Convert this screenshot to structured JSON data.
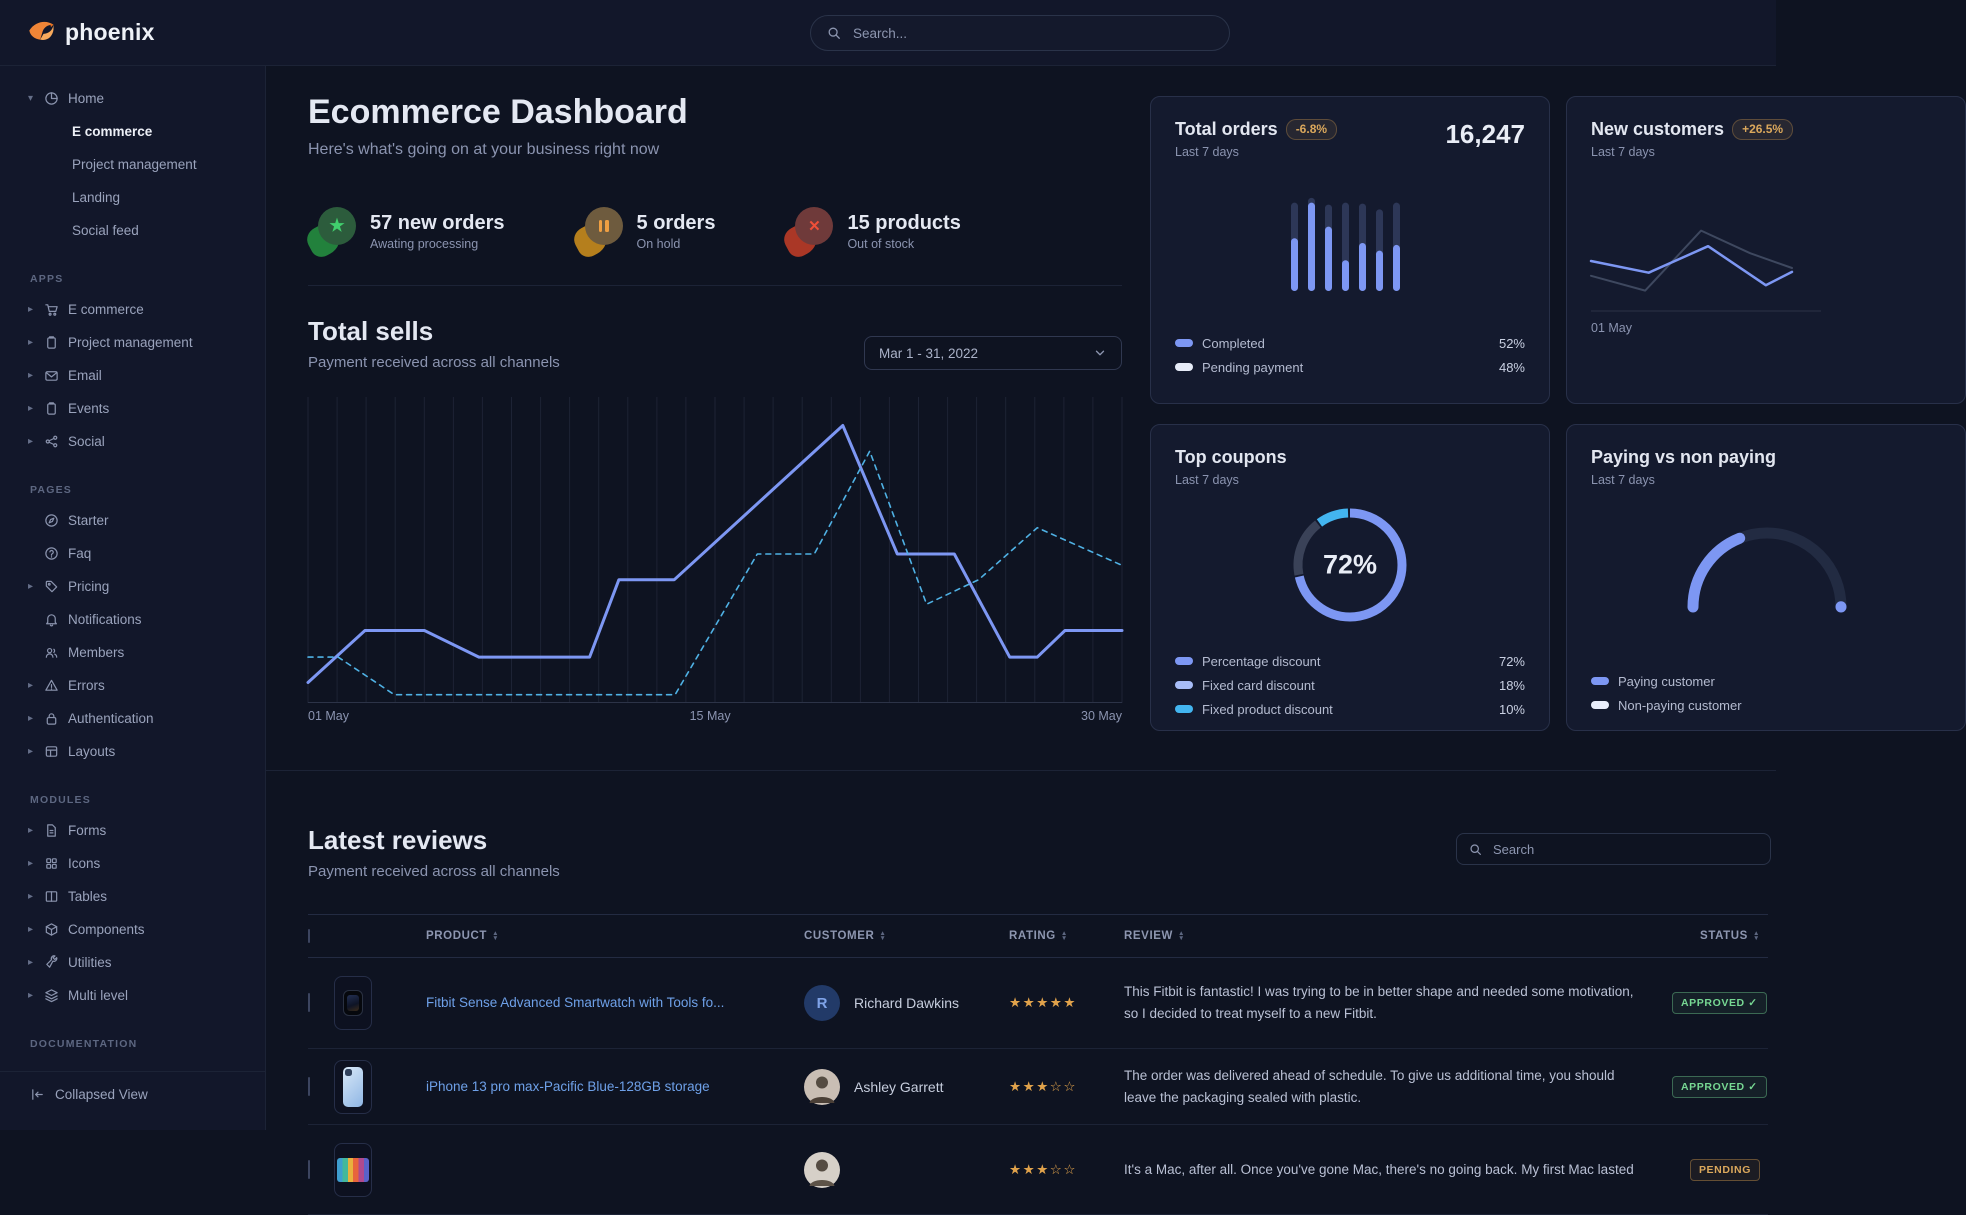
{
  "brand": {
    "name": "phoenix"
  },
  "nav": {
    "search_placeholder": "Search..."
  },
  "sidebar": {
    "home": {
      "label": "Home",
      "icon": "pie-chart-icon",
      "children": [
        "E commerce",
        "Project management",
        "Landing",
        "Social feed"
      ],
      "active_child": "E commerce"
    },
    "sections": [
      {
        "label": "APPS",
        "items": [
          {
            "label": "E commerce",
            "icon": "cart-icon",
            "caret": true
          },
          {
            "label": "Project management",
            "icon": "clipboard-icon",
            "caret": true
          },
          {
            "label": "Email",
            "icon": "mail-icon",
            "caret": true
          },
          {
            "label": "Events",
            "icon": "clipboard-icon",
            "caret": true
          },
          {
            "label": "Social",
            "icon": "share-icon",
            "caret": true
          }
        ]
      },
      {
        "label": "PAGES",
        "items": [
          {
            "label": "Starter",
            "icon": "compass-icon",
            "caret": false
          },
          {
            "label": "Faq",
            "icon": "question-icon",
            "caret": false
          },
          {
            "label": "Pricing",
            "icon": "tag-icon",
            "caret": true
          },
          {
            "label": "Notifications",
            "icon": "bell-icon",
            "caret": false
          },
          {
            "label": "Members",
            "icon": "users-icon",
            "caret": false
          },
          {
            "label": "Errors",
            "icon": "warning-icon",
            "caret": true
          },
          {
            "label": "Authentication",
            "icon": "lock-icon",
            "caret": true
          },
          {
            "label": "Layouts",
            "icon": "layout-icon",
            "caret": true
          }
        ]
      },
      {
        "label": "MODULES",
        "items": [
          {
            "label": "Forms",
            "icon": "file-icon",
            "caret": true
          },
          {
            "label": "Icons",
            "icon": "grid-icon",
            "caret": true
          },
          {
            "label": "Tables",
            "icon": "table-icon",
            "caret": true
          },
          {
            "label": "Components",
            "icon": "cube-icon",
            "caret": true
          },
          {
            "label": "Utilities",
            "icon": "wrench-icon",
            "caret": true
          },
          {
            "label": "Multi level",
            "icon": "layers-icon",
            "caret": true
          }
        ]
      },
      {
        "label": "DOCUMENTATION",
        "items": []
      }
    ],
    "footer": {
      "label": "Collapsed View",
      "icon": "collapse-icon"
    }
  },
  "header": {
    "title": "Ecommerce Dashboard",
    "subtitle": "Here's what's going on at your business right now"
  },
  "stats": [
    {
      "value": "57 new orders",
      "caption": "Awating processing",
      "icon": "star-icon",
      "tone": "green"
    },
    {
      "value": "5 orders",
      "caption": "On hold",
      "icon": "pause-icon",
      "tone": "orange"
    },
    {
      "value": "15 products",
      "caption": "Out of stock",
      "icon": "x-icon",
      "tone": "red"
    }
  ],
  "total_sells": {
    "title": "Total sells",
    "subtitle": "Payment received across all channels",
    "date_range": "Mar 1 - 31, 2022",
    "chart_data": {
      "type": "line",
      "x_ticks": [
        "01 May",
        "15 May",
        "30 May"
      ],
      "ylim": [
        0,
        100
      ],
      "grid": "vertical",
      "series": [
        {
          "name": "sells-current",
          "style": "solid",
          "color": "#7d97f3",
          "points": [
            [
              0,
              6.7
            ],
            [
              7,
              23.7
            ],
            [
              14.3,
              23.7
            ],
            [
              21,
              15
            ],
            [
              34.6,
              15
            ],
            [
              38.2,
              40.3
            ],
            [
              45,
              40.3
            ],
            [
              65.7,
              90.7
            ],
            [
              72.4,
              48.7
            ],
            [
              79.4,
              48.7
            ],
            [
              86.2,
              15
            ],
            [
              89.6,
              15
            ],
            [
              93,
              23.7
            ],
            [
              100,
              23.7
            ]
          ]
        },
        {
          "name": "sells-previous",
          "style": "dashed",
          "color": "#4fb1e4",
          "points": [
            [
              0,
              15
            ],
            [
              3.7,
              15
            ],
            [
              10.6,
              2.7
            ],
            [
              45.1,
              2.7
            ],
            [
              55.2,
              48.7
            ],
            [
              62.2,
              48.7
            ],
            [
              69,
              82.3
            ],
            [
              76,
              32.3
            ],
            [
              82.4,
              40.3
            ],
            [
              89.6,
              57.3
            ],
            [
              100,
              45
            ]
          ]
        }
      ]
    }
  },
  "cards": {
    "total_orders": {
      "title": "Total orders",
      "delta": "-6.8%",
      "period": "Last 7 days",
      "value": "16,247",
      "chart_data": {
        "type": "bar",
        "stacked": true,
        "bars": [
          {
            "h": 92,
            "c": 55
          },
          {
            "h": 97,
            "c": 92
          },
          {
            "h": 90,
            "c": 67
          },
          {
            "h": 92,
            "c": 32
          },
          {
            "h": 91,
            "c": 50
          },
          {
            "h": 85,
            "c": 42
          },
          {
            "h": 92,
            "c": 48
          }
        ],
        "colors": {
          "completed": "#7d97f3",
          "pending": "#2d3757"
        }
      },
      "legend": [
        {
          "label": "Completed",
          "value": "52%",
          "swatch": "#7d97f3"
        },
        {
          "label": "Pending payment",
          "value": "48%",
          "swatch": "#e7ecf8"
        }
      ]
    },
    "new_customers": {
      "title": "New customers",
      "delta": "+26.5%",
      "period": "Last 7 days",
      "x_label": "01 May",
      "chart_data": {
        "type": "line",
        "series": [
          {
            "name": "previous",
            "color": "#3e485f",
            "width": 2,
            "points": [
              [
                0,
                40
              ],
              [
                31,
                21
              ],
              [
                63,
                98
              ],
              [
                91,
                69
              ],
              [
                115,
                50
              ]
            ]
          },
          {
            "name": "current",
            "color": "#7d97f3",
            "width": 2.5,
            "points": [
              [
                0,
                59
              ],
              [
                33,
                44
              ],
              [
                67,
                78
              ],
              [
                100,
                28
              ],
              [
                115,
                45
              ]
            ]
          }
        ]
      }
    },
    "top_coupons": {
      "title": "Top coupons",
      "period": "Last 7 days",
      "center_label": "72%",
      "chart_data": {
        "type": "donut",
        "segments": [
          {
            "label": "Percentage discount",
            "value": 72,
            "color": "#7d97f3"
          },
          {
            "label": "Fixed card discount",
            "value": 18,
            "color": "#3a4258"
          },
          {
            "label": "Fixed product discount",
            "value": 10,
            "color": "#43b5f0"
          }
        ]
      },
      "legend": [
        {
          "label": "Percentage discount",
          "value": "72%",
          "swatch": "#7d97f3"
        },
        {
          "label": "Fixed card discount",
          "value": "18%",
          "swatch": "#a8bdf8"
        },
        {
          "label": "Fixed product discount",
          "value": "10%",
          "swatch": "#43b5f0"
        }
      ]
    },
    "paying_vs_non_paying": {
      "title": "Paying vs non paying",
      "period": "Last 7 days",
      "chart_data": {
        "type": "gauge",
        "segments": [
          {
            "label": "Paying customer",
            "value": 38,
            "color": "#7d97f3"
          },
          {
            "label": "Non-paying customer",
            "value": 62,
            "color": "#222b42"
          }
        ]
      },
      "legend": [
        {
          "label": "Paying customer",
          "swatch": "#7d97f3"
        },
        {
          "label": "Non-paying customer",
          "swatch": "#e9eefb"
        }
      ]
    }
  },
  "reviews": {
    "title": "Latest reviews",
    "subtitle": "Payment received across all channels",
    "search_placeholder": "Search",
    "columns": [
      "PRODUCT",
      "CUSTOMER",
      "RATING",
      "REVIEW",
      "STATUS"
    ],
    "rows": [
      {
        "product": "Fitbit Sense Advanced Smartwatch with Tools fo...",
        "thumb": "watch",
        "customer": {
          "name": "Richard Dawkins",
          "avatar": "initial",
          "initial": "R"
        },
        "rating": 5,
        "review": "This Fitbit is fantastic! I was trying to be in better shape and needed some motivation, so I decided to treat myself to a new Fitbit.",
        "status": {
          "label": "APPROVED",
          "tone": "success",
          "check": true
        }
      },
      {
        "product": "iPhone 13 pro max-Pacific Blue-128GB storage",
        "thumb": "phone",
        "customer": {
          "name": "Ashley Garrett",
          "avatar": "photo-f",
          "initial": ""
        },
        "rating": 3,
        "review": "The order was delivered ahead of schedule. To give us additional time, you should leave the packaging sealed with plastic.",
        "status": {
          "label": "APPROVED",
          "tone": "success",
          "check": true
        }
      },
      {
        "product": "",
        "thumb": "imac",
        "customer": {
          "name": "",
          "avatar": "photo-m",
          "initial": ""
        },
        "rating": 3,
        "review": "It's a Mac, after all. Once you've gone Mac, there's no going back. My first Mac lasted",
        "status": {
          "label": "PENDING",
          "tone": "warning",
          "check": false
        }
      }
    ]
  }
}
